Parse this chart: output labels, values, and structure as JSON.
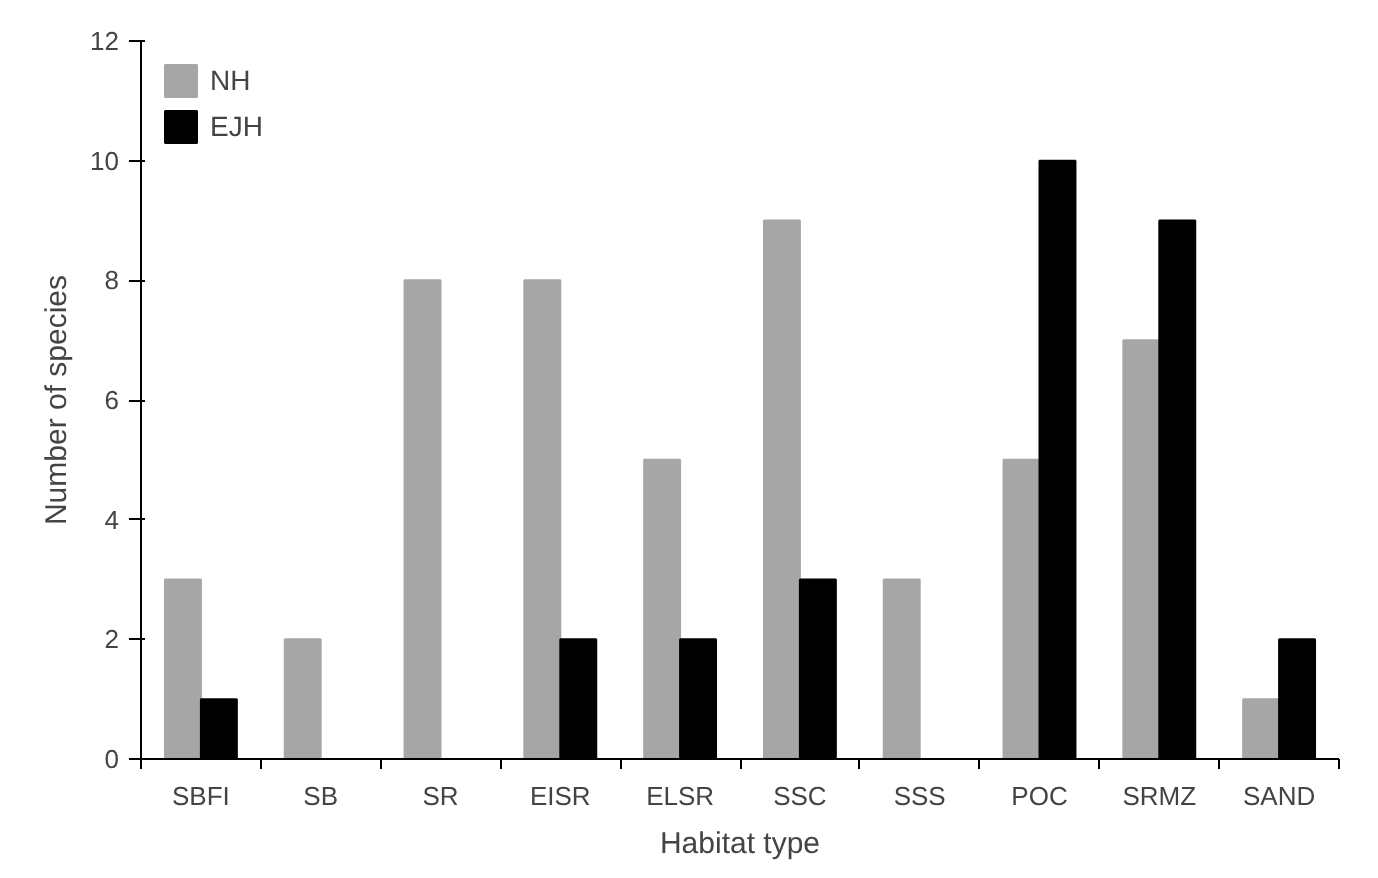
{
  "chart_data": {
    "type": "bar",
    "xlabel": "Habitat type",
    "ylabel": "Number of species",
    "categories": [
      "SBFI",
      "SB",
      "SR",
      "EISR",
      "ELSR",
      "SSC",
      "SSS",
      "POC",
      "SRMZ",
      "SAND"
    ],
    "series": [
      {
        "name": "NH",
        "color": "#a6a6a6",
        "values": [
          3,
          2,
          8,
          8,
          5,
          9,
          3,
          5,
          7,
          1
        ]
      },
      {
        "name": "EJH",
        "color": "#000000",
        "values": [
          1,
          0,
          0,
          2,
          2,
          3,
          0,
          10,
          9,
          2
        ]
      }
    ],
    "ylim": [
      0,
      12
    ],
    "yticks": [
      0,
      2,
      4,
      6,
      8,
      10,
      12
    ],
    "grid": false,
    "legend": "top left"
  }
}
